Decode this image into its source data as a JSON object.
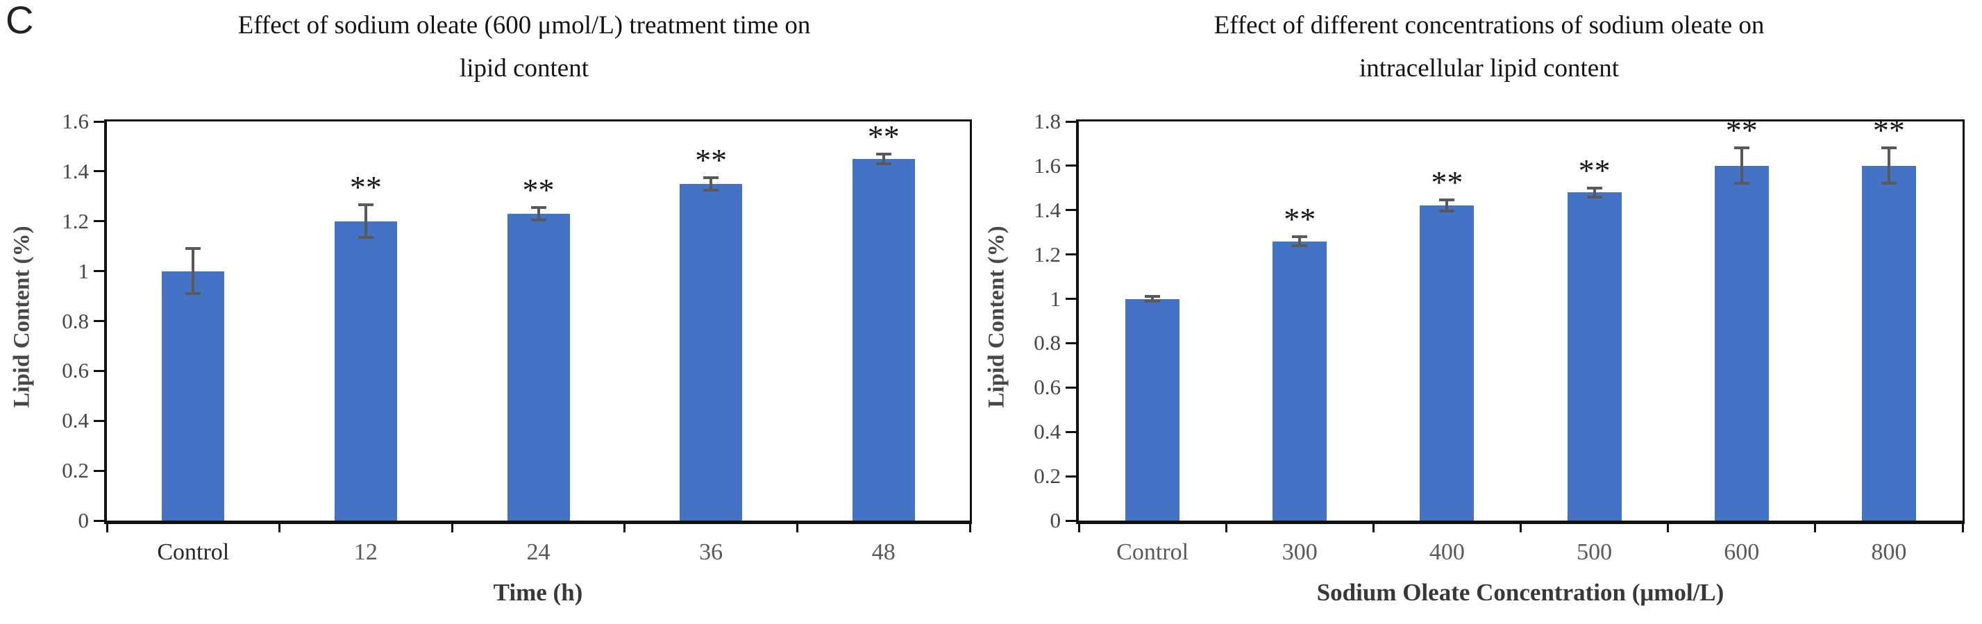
{
  "panel_label": "C",
  "colors": {
    "bar": "#4472C4",
    "error_bar": "#595959",
    "axis": "#111111",
    "ytick_label": "#454545",
    "xtick_label": "#595959",
    "title": "#141414"
  },
  "chart_data": [
    {
      "type": "bar",
      "title": "Effect of sodium oleate (600 μmol/L) treatment time on lipid content",
      "title_lines": [
        "Effect of sodium oleate (600 μmol/L) treatment time on",
        "lipid content"
      ],
      "xlabel": "Time (h)",
      "ylabel": "Lipid Content (%)",
      "categories": [
        "Control",
        "12",
        "24",
        "36",
        "48"
      ],
      "values": [
        1.0,
        1.2,
        1.23,
        1.35,
        1.45
      ],
      "errors": [
        0.09,
        0.065,
        0.025,
        0.025,
        0.02
      ],
      "annotations": [
        "",
        "**",
        "**",
        "**",
        "**"
      ],
      "ylim": [
        0,
        1.6
      ],
      "ytick_step": 0.2,
      "ytick_labels": [
        "0",
        "0.2",
        "0.4",
        "0.6",
        "0.8",
        "1",
        "1.2",
        "1.4",
        "1.6"
      ],
      "xtick_label_colors": [
        "#262626",
        "#595959",
        "#595959",
        "#595959",
        "#595959"
      ],
      "grid": false,
      "legend": null
    },
    {
      "type": "bar",
      "title": "Effect of different concentrations of sodium oleate on intracellular lipid content",
      "title_lines": [
        "Effect of different concentrations of sodium oleate on",
        "intracellular lipid content"
      ],
      "xlabel": "Sodium Oleate Concentration (μmol/L)",
      "ylabel": "Lipid Content (%)",
      "categories": [
        "Control",
        "300",
        "400",
        "500",
        "600",
        "800"
      ],
      "values": [
        1.0,
        1.26,
        1.42,
        1.48,
        1.6,
        1.6
      ],
      "errors": [
        0.01,
        0.02,
        0.025,
        0.02,
        0.08,
        0.08
      ],
      "annotations": [
        "",
        "**",
        "**",
        "**",
        "**",
        "**"
      ],
      "ylim": [
        0,
        1.8
      ],
      "ytick_step": 0.2,
      "ytick_labels": [
        "0",
        "0.2",
        "0.4",
        "0.6",
        "0.8",
        "1",
        "1.2",
        "1.4",
        "1.6",
        "1.8"
      ],
      "xtick_label_colors": [
        "#595959",
        "#595959",
        "#595959",
        "#595959",
        "#595959",
        "#595959"
      ],
      "grid": false,
      "legend": null
    }
  ]
}
